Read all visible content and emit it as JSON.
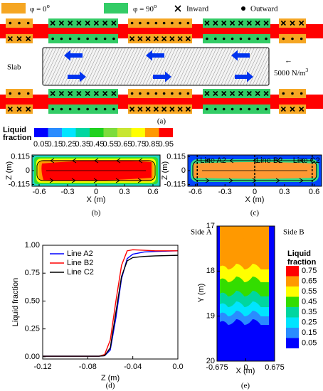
{
  "panel_a": {
    "legend": [
      {
        "label": "φ = 0",
        "sup": "o",
        "color": "#f5a623"
      },
      {
        "label": "φ = 90",
        "sup": "o",
        "color": "#33cc66"
      },
      {
        "label": "Inward"
      },
      {
        "label": "Outward"
      }
    ],
    "slab": "Slab",
    "arrow": "←",
    "force": "5000 N/m",
    "force_sup": "3",
    "caption": "(a)"
  },
  "colorbar_bc": {
    "title": [
      "Liquid",
      "fraction"
    ],
    "labels": [
      "0.05",
      "0.15",
      "0.25",
      "0.35",
      "0.45",
      "0.55",
      "0.65",
      "0.75",
      "0.85",
      "0.95"
    ],
    "colors": [
      "#0000ff",
      "#2a8cff",
      "#00e5ff",
      "#00d6a0",
      "#1fd11f",
      "#7ddc3c",
      "#c8e632",
      "#ffff00",
      "#ff9900",
      "#ff0000"
    ]
  },
  "panel_b": {
    "yticks": [
      "0.115",
      "0",
      "-0.115"
    ],
    "xticks": [
      "-0.6",
      "-0.3",
      "0",
      "0.3",
      "0.6"
    ],
    "ylabel": "Z (m)",
    "xlabel": "X (m)",
    "caption": "(b)"
  },
  "panel_c": {
    "yticks": [
      "0.115",
      "0",
      "-0.115"
    ],
    "xticks": [
      "-0.6",
      "-0.3",
      "0",
      "0.3",
      "0.6"
    ],
    "ylabel": "Z (m)",
    "xlabel": "X (m)",
    "caption": "(c)",
    "lines": [
      "Line A2",
      "Line B2",
      "Line C2"
    ]
  },
  "chart_data": {
    "type": "line",
    "x": [
      -0.12,
      -0.07,
      -0.065,
      -0.06,
      -0.055,
      -0.05,
      -0.045,
      -0.04,
      -0.03,
      -0.02,
      0
    ],
    "series": [
      {
        "name": "Line A2",
        "color": "#0000ff",
        "values": [
          0.005,
          0.005,
          0.01,
          0.06,
          0.35,
          0.7,
          0.88,
          0.92,
          0.94,
          0.945,
          0.95
        ]
      },
      {
        "name": "Line B2",
        "color": "#ff0000",
        "values": [
          0.005,
          0.005,
          0.02,
          0.15,
          0.5,
          0.82,
          0.95,
          0.96,
          0.955,
          0.95,
          0.95
        ]
      },
      {
        "name": "Line C2",
        "color": "#000000",
        "values": [
          0.005,
          0.005,
          0.01,
          0.08,
          0.4,
          0.72,
          0.86,
          0.89,
          0.9,
          0.905,
          0.91
        ]
      }
    ],
    "xlim": [
      -0.12,
      0
    ],
    "ylim": [
      -0.02,
      1.0
    ],
    "xticks": [
      -0.12,
      -0.08,
      -0.04,
      {
        "value": 0,
        "label": "0.0"
      }
    ],
    "yticks": [
      {
        "value": 0,
        "label": "0.00"
      },
      {
        "value": 0.25,
        "label": "0.25"
      },
      {
        "value": 0.5,
        "label": "0.50"
      },
      {
        "value": 0.75,
        "label": "0.75"
      },
      {
        "value": 1,
        "label": "1.00"
      }
    ],
    "xlabel": "Z  (m)",
    "ylabel": "Liquid fraction",
    "legend": "upper left",
    "caption": "(d)"
  },
  "panel_e": {
    "yticks": [
      "17",
      "18",
      "19",
      "20"
    ],
    "xticks": [
      "-0.675",
      "0",
      "0.675"
    ],
    "ylabel": "Y (m)",
    "xlabel": "X (m)",
    "side_a": "Side A",
    "side_b": "Side B",
    "colorbar_title": [
      "Liquid",
      "fraction"
    ],
    "colorbar_labels": [
      "0.75",
      "0.65",
      "0.55",
      "0.45",
      "0.35",
      "0.25",
      "0.15",
      "0.05"
    ],
    "colorbar_colors": [
      "#ff0000",
      "#ff9900",
      "#ffff00",
      "#33dd00",
      "#00d6a0",
      "#00e5ff",
      "#2a8cff",
      "#0000ff"
    ],
    "caption": "(e)"
  }
}
